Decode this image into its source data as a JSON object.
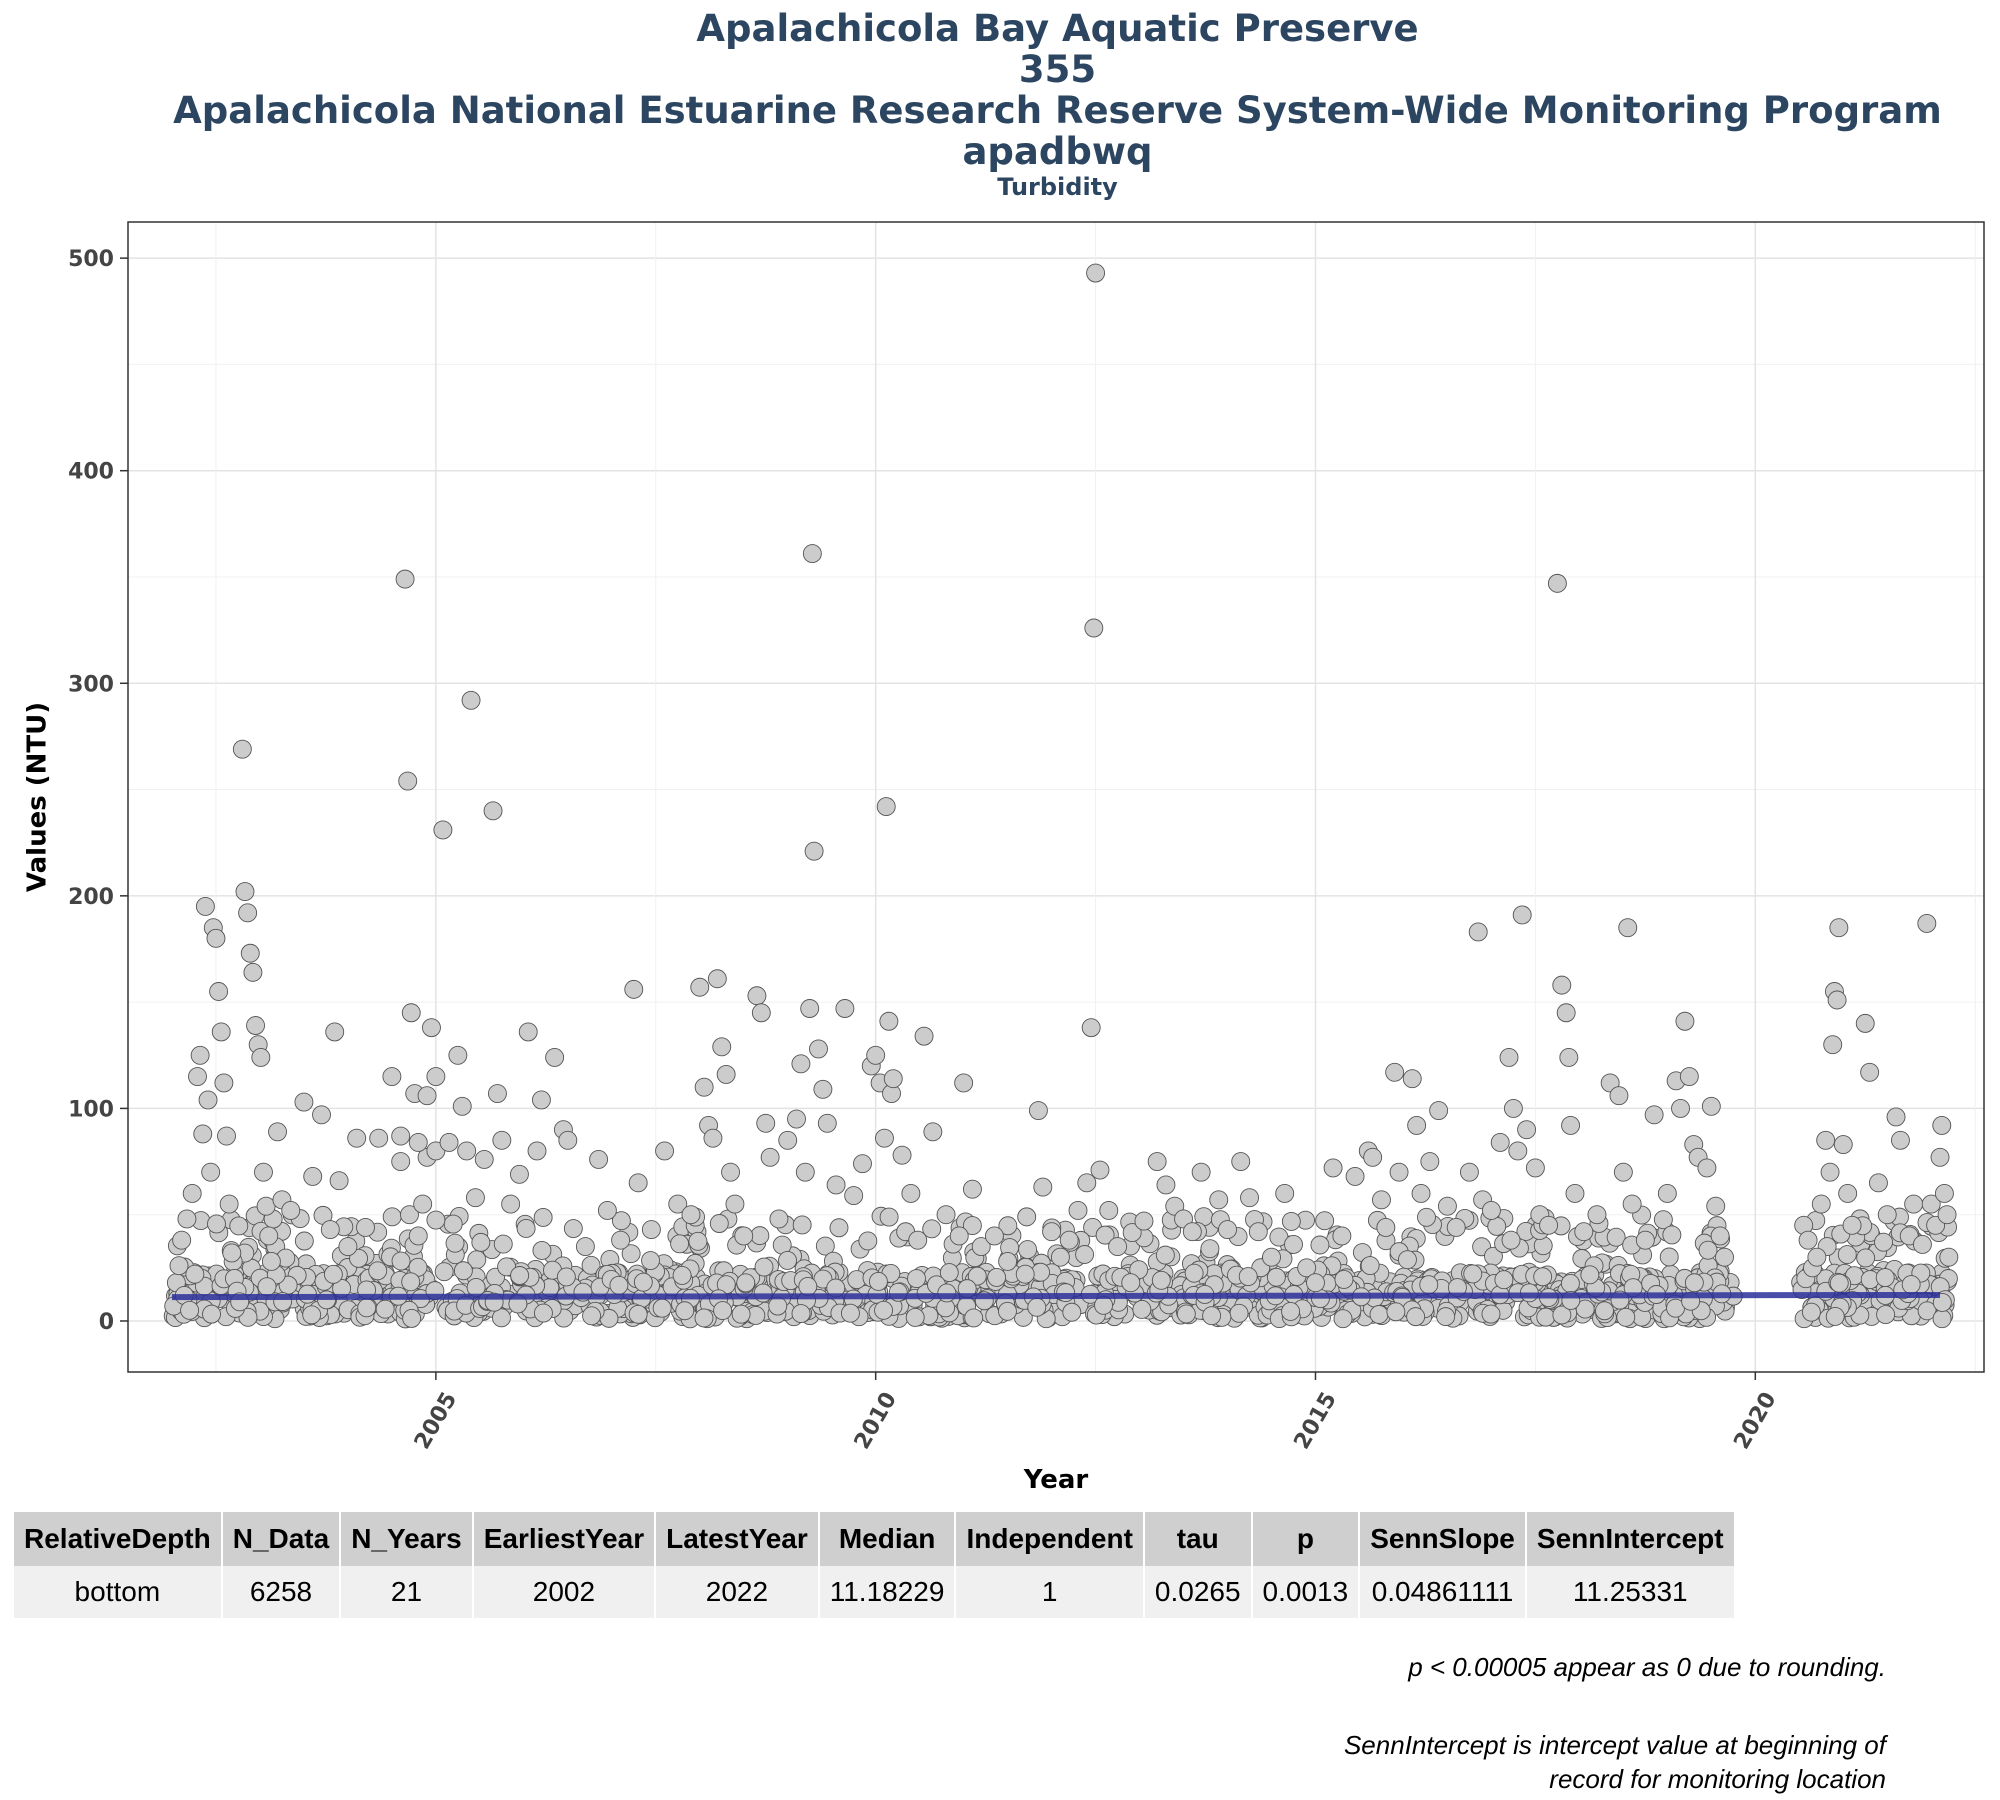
{
  "chart_data": {
    "type": "scatter",
    "title_lines": [
      "Apalachicola Bay Aquatic Preserve",
      "355",
      "Apalachicola National Estuarine Research Reserve System-Wide Monitoring Program",
      "apadbwq"
    ],
    "subtitle": "Turbidity",
    "xlabel": "Year",
    "ylabel": "Values (NTU)",
    "xlim": [
      2001.5,
      2022.6
    ],
    "ylim": [
      -24,
      517
    ],
    "x_ticks": [
      2005,
      2010,
      2015,
      2020
    ],
    "y_ticks": [
      0,
      100,
      200,
      300,
      400,
      500
    ],
    "grid": true,
    "point_color": "#cccccc",
    "point_edge_color": "#555555",
    "trend_color": "#2b2f9a",
    "trend_line": {
      "x": [
        2002.0,
        2022.1
      ],
      "y": [
        11.25,
        12.23
      ]
    },
    "points": [
      [
        2002.02,
        7
      ],
      [
        2002.05,
        18
      ],
      [
        2002.08,
        26
      ],
      [
        2002.11,
        38
      ],
      [
        2002.14,
        12
      ],
      [
        2002.17,
        48
      ],
      [
        2002.2,
        5
      ],
      [
        2002.23,
        60
      ],
      [
        2002.26,
        22
      ],
      [
        2002.29,
        115
      ],
      [
        2002.32,
        125
      ],
      [
        2002.35,
        88
      ],
      [
        2002.38,
        195
      ],
      [
        2002.41,
        104
      ],
      [
        2002.44,
        70
      ],
      [
        2002.47,
        185
      ],
      [
        2002.5,
        180
      ],
      [
        2002.53,
        155
      ],
      [
        2002.56,
        136
      ],
      [
        2002.59,
        112
      ],
      [
        2002.62,
        87
      ],
      [
        2002.65,
        55
      ],
      [
        2002.68,
        32
      ],
      [
        2002.71,
        20
      ],
      [
        2002.74,
        14
      ],
      [
        2002.77,
        9
      ],
      [
        2002.8,
        269
      ],
      [
        2002.83,
        202
      ],
      [
        2002.86,
        192
      ],
      [
        2002.89,
        173
      ],
      [
        2002.92,
        164
      ],
      [
        2002.95,
        139
      ],
      [
        2002.98,
        130
      ],
      [
        2003.01,
        124
      ],
      [
        2003.04,
        70
      ],
      [
        2003.07,
        54
      ],
      [
        2003.1,
        40
      ],
      [
        2003.13,
        28
      ],
      [
        2003.2,
        89
      ],
      [
        2003.25,
        57
      ],
      [
        2003.35,
        52
      ],
      [
        2003.5,
        103
      ],
      [
        2003.6,
        68
      ],
      [
        2003.7,
        97
      ],
      [
        2003.8,
        43
      ],
      [
        2003.85,
        136
      ],
      [
        2003.9,
        66
      ],
      [
        2004.0,
        35
      ],
      [
        2004.1,
        86
      ],
      [
        2004.2,
        44
      ],
      [
        2004.35,
        86
      ],
      [
        2004.5,
        115
      ],
      [
        2004.6,
        75
      ],
      [
        2004.7,
        50
      ],
      [
        2004.8,
        40
      ],
      [
        2004.9,
        77
      ],
      [
        2004.95,
        138
      ],
      [
        2005.0,
        115
      ],
      [
        2004.6,
        87
      ],
      [
        2004.65,
        349
      ],
      [
        2004.68,
        254
      ],
      [
        2004.72,
        145
      ],
      [
        2004.76,
        107
      ],
      [
        2004.8,
        84
      ],
      [
        2004.85,
        55
      ],
      [
        2004.9,
        106
      ],
      [
        2005.0,
        80
      ],
      [
        2005.08,
        231
      ],
      [
        2005.15,
        84
      ],
      [
        2005.25,
        125
      ],
      [
        2005.3,
        101
      ],
      [
        2005.35,
        80
      ],
      [
        2005.4,
        292
      ],
      [
        2005.45,
        58
      ],
      [
        2005.55,
        76
      ],
      [
        2005.65,
        240
      ],
      [
        2005.7,
        107
      ],
      [
        2005.75,
        85
      ],
      [
        2005.85,
        55
      ],
      [
        2005.95,
        69
      ],
      [
        2006.05,
        136
      ],
      [
        2006.15,
        80
      ],
      [
        2006.2,
        104
      ],
      [
        2006.35,
        124
      ],
      [
        2006.45,
        90
      ],
      [
        2006.5,
        85
      ],
      [
        2006.7,
        35
      ],
      [
        2006.85,
        76
      ],
      [
        2006.95,
        52
      ],
      [
        2007.1,
        38
      ],
      [
        2007.25,
        156
      ],
      [
        2007.3,
        65
      ],
      [
        2007.45,
        43
      ],
      [
        2007.6,
        80
      ],
      [
        2007.75,
        55
      ],
      [
        2007.9,
        50
      ],
      [
        2008.0,
        157
      ],
      [
        2008.05,
        110
      ],
      [
        2008.1,
        92
      ],
      [
        2008.15,
        86
      ],
      [
        2008.2,
        161
      ],
      [
        2008.25,
        129
      ],
      [
        2008.3,
        116
      ],
      [
        2008.35,
        70
      ],
      [
        2008.4,
        55
      ],
      [
        2008.5,
        40
      ],
      [
        2008.65,
        153
      ],
      [
        2008.7,
        145
      ],
      [
        2008.75,
        93
      ],
      [
        2008.8,
        77
      ],
      [
        2008.9,
        48
      ],
      [
        2009.0,
        85
      ],
      [
        2009.1,
        95
      ],
      [
        2009.15,
        121
      ],
      [
        2009.2,
        70
      ],
      [
        2009.25,
        147
      ],
      [
        2009.28,
        361
      ],
      [
        2009.3,
        221
      ],
      [
        2009.35,
        128
      ],
      [
        2009.4,
        109
      ],
      [
        2009.45,
        93
      ],
      [
        2009.55,
        64
      ],
      [
        2009.65,
        147
      ],
      [
        2009.75,
        59
      ],
      [
        2009.85,
        74
      ],
      [
        2009.95,
        120
      ],
      [
        2010.0,
        125
      ],
      [
        2010.05,
        112
      ],
      [
        2010.1,
        86
      ],
      [
        2010.12,
        242
      ],
      [
        2010.15,
        141
      ],
      [
        2010.18,
        107
      ],
      [
        2010.2,
        114
      ],
      [
        2010.3,
        78
      ],
      [
        2010.4,
        60
      ],
      [
        2010.55,
        134
      ],
      [
        2010.65,
        89
      ],
      [
        2010.8,
        50
      ],
      [
        2010.95,
        40
      ],
      [
        2011.0,
        112
      ],
      [
        2011.1,
        62
      ],
      [
        2011.2,
        35
      ],
      [
        2011.35,
        40
      ],
      [
        2011.5,
        28
      ],
      [
        2011.7,
        22
      ],
      [
        2011.85,
        99
      ],
      [
        2011.9,
        63
      ],
      [
        2012.0,
        42
      ],
      [
        2012.1,
        30
      ],
      [
        2012.2,
        38
      ],
      [
        2012.3,
        52
      ],
      [
        2012.4,
        65
      ],
      [
        2012.45,
        138
      ],
      [
        2012.48,
        326
      ],
      [
        2012.5,
        493
      ],
      [
        2012.55,
        71
      ],
      [
        2012.65,
        52
      ],
      [
        2012.75,
        35
      ],
      [
        2012.9,
        18
      ],
      [
        2013.05,
        47
      ],
      [
        2013.2,
        75
      ],
      [
        2013.3,
        64
      ],
      [
        2013.4,
        54
      ],
      [
        2013.5,
        48
      ],
      [
        2013.6,
        42
      ],
      [
        2013.7,
        70
      ],
      [
        2013.8,
        34
      ],
      [
        2013.9,
        57
      ],
      [
        2014.0,
        43
      ],
      [
        2014.15,
        75
      ],
      [
        2014.25,
        58
      ],
      [
        2014.35,
        42
      ],
      [
        2014.5,
        30
      ],
      [
        2014.65,
        60
      ],
      [
        2014.75,
        36
      ],
      [
        2014.9,
        25
      ],
      [
        2015.0,
        18
      ],
      [
        2015.2,
        72
      ],
      [
        2015.3,
        40
      ],
      [
        2015.45,
        68
      ],
      [
        2015.6,
        80
      ],
      [
        2015.65,
        77
      ],
      [
        2015.75,
        57
      ],
      [
        2015.8,
        44
      ],
      [
        2015.9,
        117
      ],
      [
        2015.95,
        70
      ],
      [
        2016.1,
        114
      ],
      [
        2016.15,
        92
      ],
      [
        2016.2,
        60
      ],
      [
        2016.3,
        75
      ],
      [
        2016.4,
        99
      ],
      [
        2016.5,
        54
      ],
      [
        2016.6,
        44
      ],
      [
        2016.75,
        70
      ],
      [
        2016.85,
        183
      ],
      [
        2016.9,
        57
      ],
      [
        2017.0,
        52
      ],
      [
        2017.1,
        84
      ],
      [
        2017.2,
        124
      ],
      [
        2017.25,
        100
      ],
      [
        2017.3,
        80
      ],
      [
        2017.35,
        191
      ],
      [
        2017.4,
        90
      ],
      [
        2017.5,
        72
      ],
      [
        2017.55,
        50
      ],
      [
        2017.65,
        45
      ],
      [
        2017.75,
        347
      ],
      [
        2017.8,
        158
      ],
      [
        2017.85,
        145
      ],
      [
        2017.88,
        124
      ],
      [
        2017.9,
        92
      ],
      [
        2017.95,
        60
      ],
      [
        2018.05,
        42
      ],
      [
        2018.2,
        50
      ],
      [
        2018.35,
        112
      ],
      [
        2018.45,
        106
      ],
      [
        2018.5,
        70
      ],
      [
        2018.55,
        185
      ],
      [
        2018.6,
        55
      ],
      [
        2018.75,
        38
      ],
      [
        2018.85,
        97
      ],
      [
        2019.0,
        60
      ],
      [
        2019.1,
        113
      ],
      [
        2019.15,
        100
      ],
      [
        2019.2,
        141
      ],
      [
        2019.25,
        115
      ],
      [
        2019.3,
        83
      ],
      [
        2019.35,
        77
      ],
      [
        2019.45,
        72
      ],
      [
        2019.5,
        101
      ],
      [
        2019.55,
        54
      ],
      [
        2019.6,
        40
      ],
      [
        2019.65,
        30
      ],
      [
        2020.55,
        45
      ],
      [
        2020.6,
        38
      ],
      [
        2020.65,
        25
      ],
      [
        2020.7,
        30
      ],
      [
        2020.75,
        55
      ],
      [
        2020.8,
        85
      ],
      [
        2020.85,
        70
      ],
      [
        2020.88,
        130
      ],
      [
        2020.9,
        155
      ],
      [
        2020.93,
        151
      ],
      [
        2020.95,
        185
      ],
      [
        2021.0,
        83
      ],
      [
        2021.05,
        60
      ],
      [
        2021.1,
        45
      ],
      [
        2021.25,
        140
      ],
      [
        2021.3,
        117
      ],
      [
        2021.4,
        65
      ],
      [
        2021.5,
        50
      ],
      [
        2021.6,
        96
      ],
      [
        2021.65,
        85
      ],
      [
        2021.75,
        40
      ],
      [
        2021.8,
        55
      ],
      [
        2021.9,
        36
      ],
      [
        2021.95,
        187
      ],
      [
        2022.0,
        55
      ],
      [
        2022.05,
        45
      ],
      [
        2022.1,
        77
      ],
      [
        2022.12,
        92
      ],
      [
        2022.15,
        60
      ],
      [
        2022.18,
        50
      ],
      [
        2022.2,
        30
      ]
    ]
  },
  "table": {
    "headers": [
      "RelativeDepth",
      "N_Data",
      "N_Years",
      "EarliestYear",
      "LatestYear",
      "Median",
      "Independent",
      "tau",
      "p",
      "SennSlope",
      "SennIntercept"
    ],
    "row": [
      "bottom",
      "6258",
      "21",
      "2002",
      "2022",
      "11.18229",
      "1",
      "0.0265",
      "0.0013",
      "0.04861111",
      "11.25331"
    ]
  },
  "notes": {
    "p_note": "p < 0.00005 appear as 0 due to rounding.",
    "intercept_line1": "SennIntercept is intercept value at beginning of",
    "intercept_line2": "record for monitoring location"
  }
}
